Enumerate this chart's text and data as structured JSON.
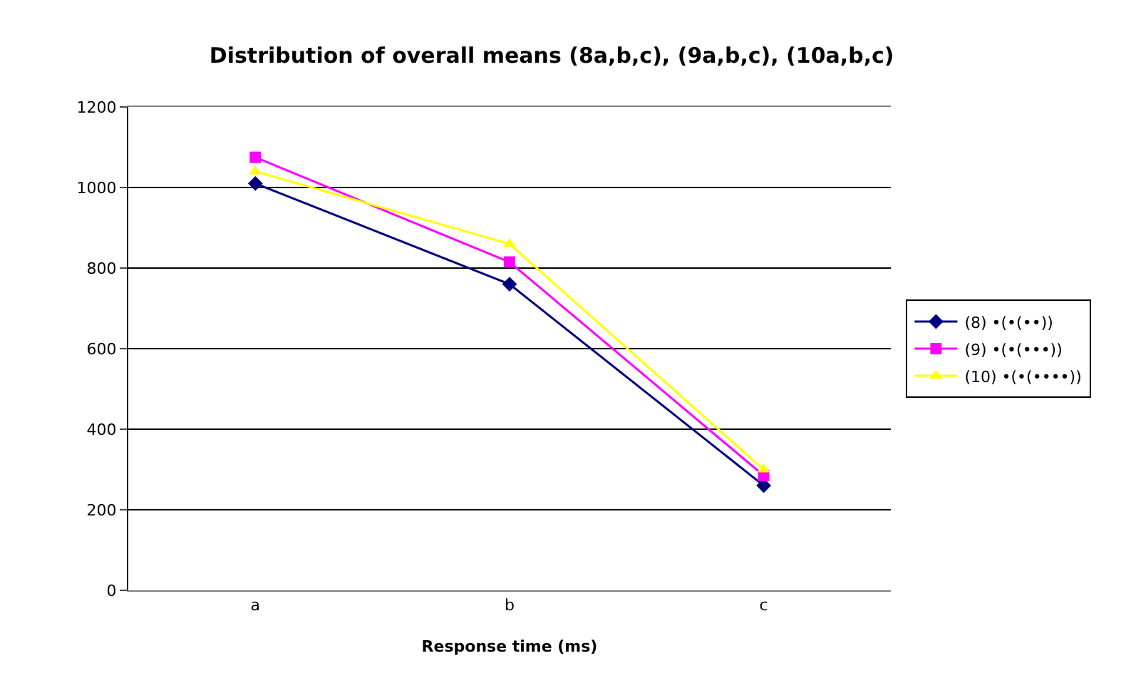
{
  "chart_data": {
    "type": "line",
    "title": "Distribution of overall means (8a,b,c), (9a,b,c), (10a,b,c)",
    "xlabel": "Response time (ms)",
    "categories": [
      "a",
      "b",
      "c"
    ],
    "series": [
      {
        "name": "(8) •(•(••))",
        "color": "#000080",
        "marker": "diamond",
        "values": [
          1010,
          760,
          260
        ]
      },
      {
        "name": "(9) •(•(•••))",
        "color": "#ff00ff",
        "marker": "square",
        "values": [
          1075,
          815,
          285
        ]
      },
      {
        "name": "(10) •(•(••••))",
        "color": "#ffff00",
        "marker": "triangle",
        "values": [
          1040,
          860,
          300
        ]
      }
    ],
    "ylim": [
      0,
      1200
    ],
    "yticks": [
      0,
      200,
      400,
      600,
      800,
      1000,
      1200
    ],
    "grid": "y",
    "legend": "right",
    "line_style": "solid"
  }
}
